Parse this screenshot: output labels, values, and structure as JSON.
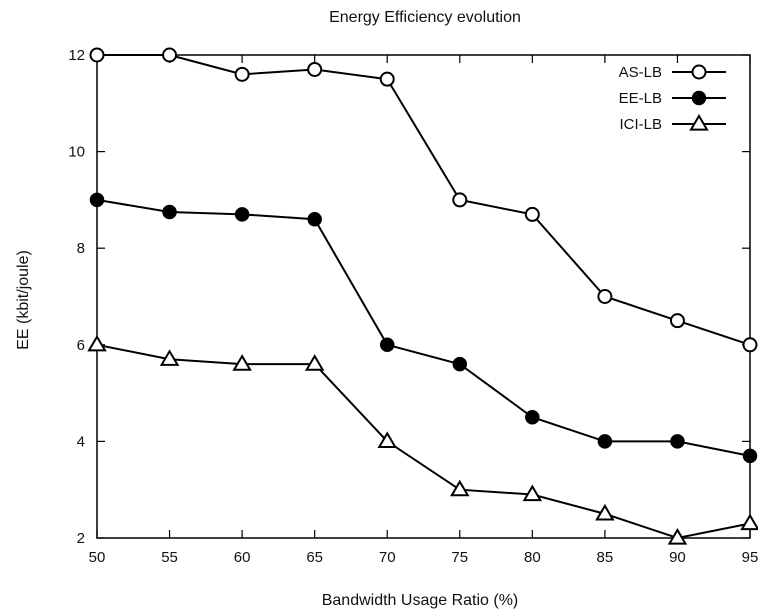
{
  "chart_data": {
    "type": "line",
    "title": "Energy Efficiency evolution",
    "xlabel": "Bandwidth Usage Ratio (%)",
    "ylabel": "EE (kbit/joule)",
    "x": [
      50,
      55,
      60,
      65,
      70,
      75,
      80,
      85,
      90,
      95
    ],
    "xlim": [
      50,
      95
    ],
    "ylim": [
      2,
      12
    ],
    "xticks": [
      50,
      55,
      60,
      65,
      70,
      75,
      80,
      85,
      90,
      95
    ],
    "yticks": [
      2,
      4,
      6,
      8,
      10,
      12
    ],
    "grid": false,
    "legend": "top-right",
    "series": [
      {
        "name": "AS-LB",
        "marker": "open-circle",
        "values": [
          12,
          12,
          11.6,
          11.7,
          11.5,
          9,
          8.7,
          7,
          6.5,
          6
        ]
      },
      {
        "name": "EE-LB",
        "marker": "filled-circle",
        "values": [
          9,
          8.75,
          8.7,
          8.6,
          6,
          5.6,
          4.5,
          4,
          4,
          3.7
        ]
      },
      {
        "name": "ICI-LB",
        "marker": "open-triangle",
        "values": [
          6,
          5.7,
          5.6,
          5.6,
          4,
          3,
          2.9,
          2.5,
          2,
          2.3
        ]
      }
    ]
  }
}
